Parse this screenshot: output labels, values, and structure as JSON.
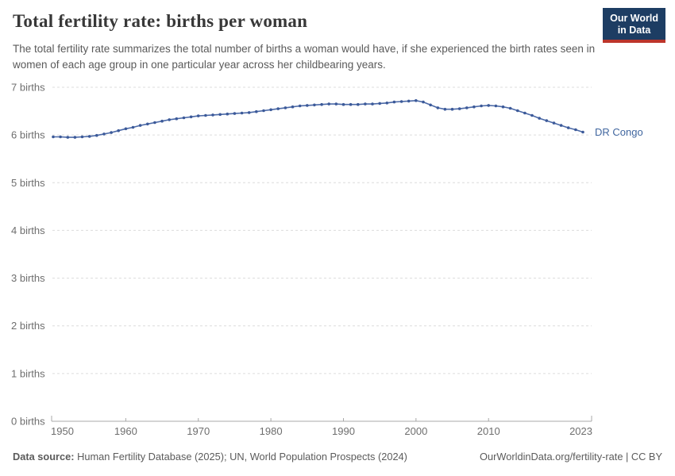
{
  "header": {
    "title": "Total fertility rate: births per woman",
    "subtitle": "The total fertility rate summarizes the total number of births a woman would have, if she experienced the birth rates seen in women of each age group in one particular year across her childbearing years."
  },
  "logo": {
    "line1": "Our World",
    "line2": "in Data",
    "bg_color": "#1d3d63",
    "bar_color": "#bc352b"
  },
  "footer": {
    "data_source_label": "Data source:",
    "data_source_value": " Human Fertility Database (2025); UN, World Population Prospects (2024)",
    "credit": "OurWorldinData.org/fertility-rate | CC BY"
  },
  "chart_data": {
    "type": "line",
    "title": "Total fertility rate: births per woman",
    "xlabel": "",
    "ylabel": "births",
    "xlim": [
      1950,
      2023
    ],
    "ylim": [
      0,
      7
    ],
    "grid": "dashed horizontal",
    "legend_position": "end-of-line label",
    "colors": {
      "line": "#4b69a7",
      "marker": "#3c5a99",
      "entity_label": "#40669f",
      "grid": "#dcdcdc",
      "axis_line": "#a8a8a8",
      "axis_text": "#6e6e6e"
    },
    "y_ticks": [
      {
        "value": 0,
        "label": "0 births"
      },
      {
        "value": 1,
        "label": "1 births"
      },
      {
        "value": 2,
        "label": "2 births"
      },
      {
        "value": 3,
        "label": "3 births"
      },
      {
        "value": 4,
        "label": "4 births"
      },
      {
        "value": 5,
        "label": "5 births"
      },
      {
        "value": 6,
        "label": "6 births"
      },
      {
        "value": 7,
        "label": "7 births"
      }
    ],
    "x_ticks": [
      {
        "year": 1950,
        "label": "1950",
        "align": "start"
      },
      {
        "year": 1960,
        "label": "1960",
        "align": "middle"
      },
      {
        "year": 1970,
        "label": "1970",
        "align": "middle"
      },
      {
        "year": 1980,
        "label": "1980",
        "align": "middle"
      },
      {
        "year": 1990,
        "label": "1990",
        "align": "middle"
      },
      {
        "year": 2000,
        "label": "2000",
        "align": "middle"
      },
      {
        "year": 2010,
        "label": "2010",
        "align": "middle"
      },
      {
        "year": 2023,
        "label": "2023",
        "align": "end"
      }
    ],
    "series": [
      {
        "name": "DR Congo",
        "years": [
          1950,
          1951,
          1952,
          1953,
          1954,
          1955,
          1956,
          1957,
          1958,
          1959,
          1960,
          1961,
          1962,
          1963,
          1964,
          1965,
          1966,
          1967,
          1968,
          1969,
          1970,
          1971,
          1972,
          1973,
          1974,
          1975,
          1976,
          1977,
          1978,
          1979,
          1980,
          1981,
          1982,
          1983,
          1984,
          1985,
          1986,
          1987,
          1988,
          1989,
          1990,
          1991,
          1992,
          1993,
          1994,
          1995,
          1996,
          1997,
          1998,
          1999,
          2000,
          2001,
          2002,
          2003,
          2004,
          2005,
          2006,
          2007,
          2008,
          2009,
          2010,
          2011,
          2012,
          2013,
          2014,
          2015,
          2016,
          2017,
          2018,
          2019,
          2020,
          2021,
          2022,
          2023
        ],
        "values": [
          5.96,
          5.96,
          5.95,
          5.95,
          5.96,
          5.97,
          5.99,
          6.02,
          6.05,
          6.09,
          6.13,
          6.16,
          6.2,
          6.23,
          6.26,
          6.29,
          6.32,
          6.34,
          6.36,
          6.38,
          6.4,
          6.41,
          6.42,
          6.43,
          6.44,
          6.45,
          6.46,
          6.47,
          6.49,
          6.51,
          6.53,
          6.55,
          6.57,
          6.59,
          6.61,
          6.62,
          6.63,
          6.64,
          6.65,
          6.65,
          6.64,
          6.64,
          6.64,
          6.65,
          6.65,
          6.66,
          6.67,
          6.69,
          6.7,
          6.71,
          6.72,
          6.69,
          6.63,
          6.57,
          6.54,
          6.54,
          6.55,
          6.57,
          6.59,
          6.61,
          6.62,
          6.61,
          6.59,
          6.56,
          6.51,
          6.46,
          6.41,
          6.35,
          6.3,
          6.25,
          6.2,
          6.15,
          6.11,
          6.06
        ]
      }
    ]
  }
}
